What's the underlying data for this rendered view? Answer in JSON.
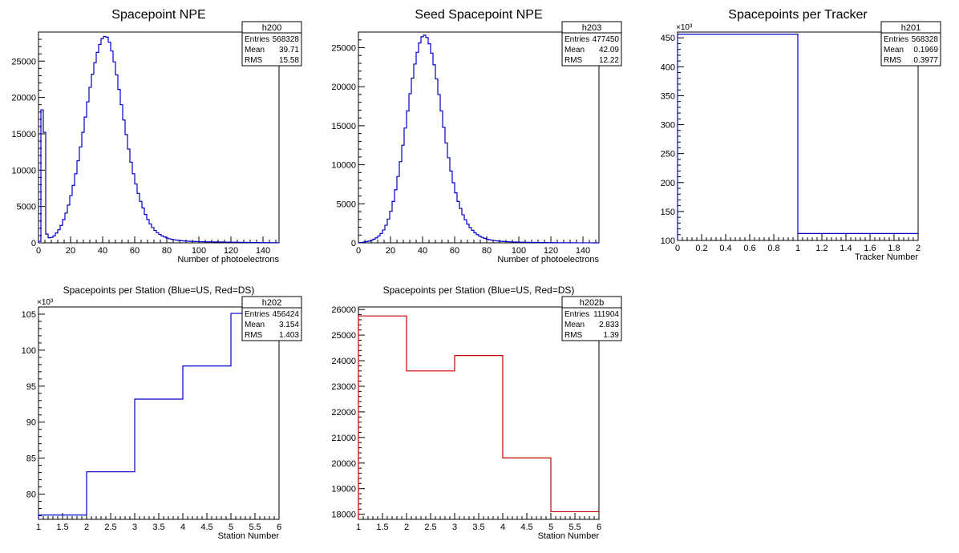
{
  "chart_data": [
    {
      "type": "histogram",
      "title": "Spacepoint NPE",
      "xlabel": "Number of photoelectrons",
      "ylabel": "",
      "xlim": [
        0,
        150
      ],
      "ylim": [
        0,
        29000
      ],
      "xticks": [
        0,
        20,
        40,
        60,
        80,
        100,
        120,
        140
      ],
      "yticks": [
        0,
        5000,
        10000,
        15000,
        20000,
        25000
      ],
      "color": "#0000cc",
      "stats": {
        "name": "h200",
        "rows": [
          [
            "Entries",
            "568328"
          ],
          [
            "Mean",
            "39.71"
          ],
          [
            "RMS",
            "15.58"
          ]
        ]
      },
      "x_start": 0,
      "bin_width": 1.5,
      "values": [
        200,
        18300,
        15200,
        1200,
        700,
        750,
        950,
        1350,
        1800,
        2400,
        3200,
        4100,
        5200,
        6500,
        7900,
        9500,
        11300,
        13200,
        15200,
        17300,
        19400,
        21400,
        23200,
        24800,
        26200,
        27300,
        28100,
        28400,
        28300,
        27600,
        26400,
        24900,
        23100,
        21100,
        19000,
        16900,
        14900,
        12900,
        11100,
        9500,
        8100,
        6800,
        5700,
        4800,
        3900,
        3200,
        2600,
        2100,
        1700,
        1400,
        1150,
        950,
        800,
        670,
        560,
        480,
        420,
        370,
        330,
        290,
        260,
        240,
        220,
        200,
        190,
        180,
        170,
        160,
        150,
        145,
        140,
        135,
        130,
        125,
        120,
        115,
        110,
        105,
        100,
        95,
        90,
        85,
        80,
        75,
        70,
        65,
        60,
        55,
        50,
        45,
        40,
        38,
        35,
        32,
        30,
        28,
        25,
        22,
        20,
        18
      ]
    },
    {
      "type": "histogram",
      "title": "Seed Spacepoint NPE",
      "xlabel": "Number of photoelectrons",
      "ylabel": "",
      "xlim": [
        0,
        150
      ],
      "ylim": [
        0,
        27000
      ],
      "xticks": [
        0,
        20,
        40,
        60,
        80,
        100,
        120,
        140
      ],
      "yticks": [
        0,
        5000,
        10000,
        15000,
        20000,
        25000
      ],
      "color": "#0000cc",
      "stats": {
        "name": "h203",
        "rows": [
          [
            "Entries",
            "477450"
          ],
          [
            "Mean",
            "42.09"
          ],
          [
            "RMS",
            "12.22"
          ]
        ]
      },
      "x_start": 0,
      "bin_width": 1.5,
      "values": [
        30,
        60,
        100,
        160,
        230,
        330,
        460,
        640,
        880,
        1200,
        1650,
        2250,
        3050,
        4050,
        5300,
        6800,
        8500,
        10400,
        12500,
        14700,
        16900,
        19100,
        21100,
        22900,
        24400,
        25600,
        26400,
        26600,
        26300,
        25500,
        24300,
        22800,
        21000,
        19000,
        16900,
        14800,
        12800,
        10900,
        9200,
        7700,
        6400,
        5300,
        4400,
        3600,
        2950,
        2400,
        1950,
        1600,
        1300,
        1050,
        850,
        700,
        580,
        480,
        400,
        340,
        290,
        250,
        220,
        190,
        170,
        150,
        135,
        120,
        110,
        100,
        92,
        85,
        78,
        72,
        66,
        60,
        55,
        50,
        46,
        42,
        38,
        35,
        32,
        29,
        26,
        24,
        22,
        20,
        18,
        16,
        14,
        12,
        10,
        9,
        8,
        7,
        6,
        5,
        5,
        4,
        4,
        3,
        3,
        2
      ]
    },
    {
      "type": "histogram",
      "title": "Spacepoints per Tracker",
      "xlabel": "Tracker Number",
      "ylabel": "",
      "xlim": [
        0,
        2
      ],
      "ylim": [
        100,
        460
      ],
      "axis_multiplier": "×10³",
      "xticks": [
        0,
        0.2,
        0.4,
        0.6,
        0.8,
        1,
        1.2,
        1.4,
        1.6,
        1.8,
        2
      ],
      "yticks": [
        100,
        150,
        200,
        250,
        300,
        350,
        400,
        450
      ],
      "color": "#0000cc",
      "stats": {
        "name": "h201",
        "rows": [
          [
            "Entries",
            "568328"
          ],
          [
            "Mean",
            "0.1969"
          ],
          [
            "RMS",
            "0.3977"
          ]
        ]
      },
      "x_start": 0,
      "bin_width": 1,
      "values": [
        456.4,
        111.9
      ]
    },
    {
      "type": "histogram",
      "title": "Spacepoints per Station (Blue=US, Red=DS)",
      "xlabel": "Station Number",
      "ylabel": "",
      "xlim": [
        1,
        6
      ],
      "ylim": [
        76.5,
        106
      ],
      "axis_multiplier": "×10³",
      "xticks": [
        1,
        1.5,
        2,
        2.5,
        3,
        3.5,
        4,
        4.5,
        5,
        5.5,
        6
      ],
      "yticks": [
        80,
        85,
        90,
        95,
        100,
        105
      ],
      "color": "#0000cc",
      "stats": {
        "name": "h202",
        "rows": [
          [
            "Entries",
            "456424"
          ],
          [
            "Mean",
            "3.154"
          ],
          [
            "RMS",
            "1.403"
          ]
        ]
      },
      "x_start": 1,
      "bin_width": 1,
      "values": [
        77.1,
        83.1,
        93.2,
        97.8,
        105.1
      ]
    },
    {
      "type": "histogram",
      "title": "Spacepoints per Station (Blue=US, Red=DS)",
      "xlabel": "Station Number",
      "ylabel": "",
      "xlim": [
        1,
        6
      ],
      "ylim": [
        17800,
        26100
      ],
      "xticks": [
        1,
        1.5,
        2,
        2.5,
        3,
        3.5,
        4,
        4.5,
        5,
        5.5,
        6
      ],
      "yticks": [
        18000,
        19000,
        20000,
        21000,
        22000,
        23000,
        24000,
        25000,
        26000
      ],
      "color": "#cc0000",
      "stats": {
        "name": "h202b",
        "rows": [
          [
            "Entries",
            "111904"
          ],
          [
            "Mean",
            "2.833"
          ],
          [
            "RMS",
            "1.39"
          ]
        ]
      },
      "x_start": 1,
      "bin_width": 1,
      "values": [
        25750,
        23600,
        24200,
        20200,
        18100
      ]
    }
  ]
}
